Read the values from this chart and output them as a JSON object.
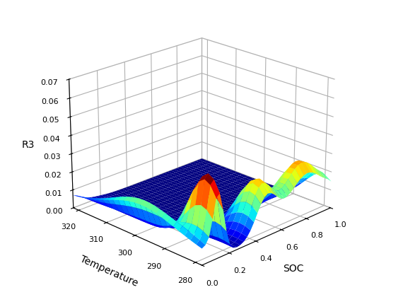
{
  "xlabel": "SOC",
  "ylabel": "Temperature",
  "zlabel": "R3",
  "zlim": [
    0,
    0.07
  ],
  "zticks": [
    0,
    0.01,
    0.02,
    0.03,
    0.04,
    0.05,
    0.06,
    0.07
  ],
  "soc_ticks": [
    0,
    0.2,
    0.4,
    0.6,
    0.8,
    1.0
  ],
  "temp_ticks": [
    280,
    290,
    300,
    310,
    320
  ],
  "elev": 22,
  "azim": -135,
  "cmap": "jet",
  "figsize": [
    5.6,
    4.2
  ],
  "dpi": 100
}
